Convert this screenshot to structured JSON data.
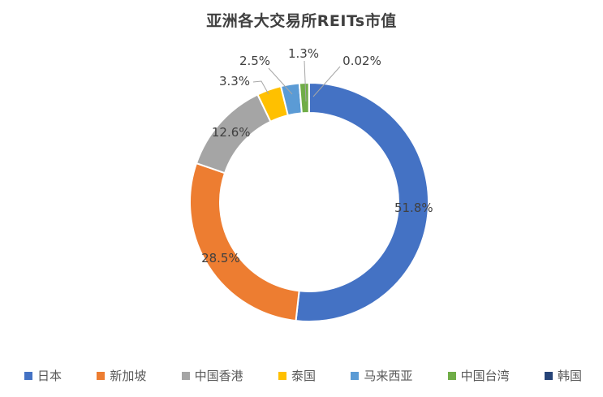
{
  "chart_data": {
    "type": "pie",
    "subtype": "donut",
    "title": "亚洲各大交易所REITs市值",
    "categories": [
      "日本",
      "新加坡",
      "中国香港",
      "泰国",
      "马来西亚",
      "中国台湾",
      "韩国"
    ],
    "values": [
      51.8,
      28.5,
      12.6,
      3.3,
      2.5,
      1.3,
      0.02
    ],
    "labels": [
      "51.8%",
      "28.5%",
      "12.6%",
      "3.3%",
      "2.5%",
      "1.3%",
      "0.02%"
    ],
    "colors": [
      "#4472C4",
      "#ED7D31",
      "#A5A5A5",
      "#FFC000",
      "#5B9BD5",
      "#70AD47",
      "#264478"
    ],
    "legend_position": "bottom",
    "start_angle_deg": 0,
    "direction": "clockwise",
    "hole_ratio": 0.75,
    "title_color": "#404040",
    "data_label_color": "#404040",
    "leader_line_color": "#A6A6A6",
    "legend_text_color": "#595959",
    "background_color": "#FFFFFF"
  }
}
